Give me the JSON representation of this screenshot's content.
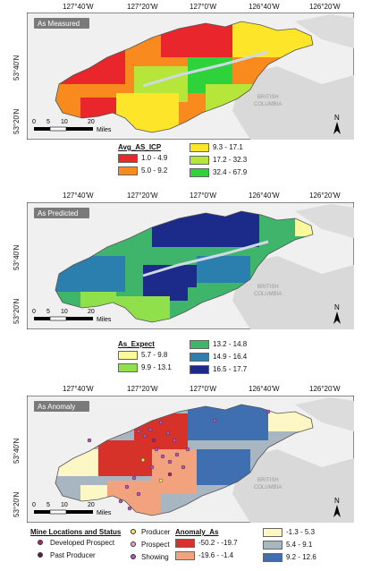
{
  "longitude_labels": [
    "127°40'W",
    "127°20'W",
    "127°0'W",
    "126°40'W",
    "126°20'W"
  ],
  "latitude_labels": [
    "53°40'N",
    "53°20'N"
  ],
  "region_label_line1": "BRITISH",
  "region_label_line2": "COLUMBIA",
  "scale": {
    "ticks": [
      "0",
      "5",
      "10",
      "20"
    ],
    "unit": "Miles"
  },
  "north_label": "N",
  "panels": {
    "measured": {
      "title": "As Measured"
    },
    "predicted": {
      "title": "As Predicted"
    },
    "anomaly": {
      "title": "As Anomaly"
    }
  },
  "legend_measured": {
    "title": "Avg_AS_ICP",
    "classes": [
      {
        "label": "1.0 - 4.9",
        "color": "#e8262b"
      },
      {
        "label": "5.0 - 9.2",
        "color": "#f98a1e"
      },
      {
        "label": "9.3 - 17.1",
        "color": "#fde52a"
      },
      {
        "label": "17.2 - 32.3",
        "color": "#b6e63a"
      },
      {
        "label": "32.4 - 67.9",
        "color": "#2ed23a"
      }
    ]
  },
  "legend_predicted": {
    "title": "As_Expect",
    "classes": [
      {
        "label": "5.7 - 9.8",
        "color": "#fbfa9a"
      },
      {
        "label": "9.9 - 13.1",
        "color": "#8fe04a"
      },
      {
        "label": "13.2 - 14.8",
        "color": "#3fb56b"
      },
      {
        "label": "14.9 - 16.4",
        "color": "#2a7fae"
      },
      {
        "label": "16.5 - 17.7",
        "color": "#1c2a8a"
      }
    ]
  },
  "legend_anomaly": {
    "title": "Anomaly_As",
    "classes": [
      {
        "label": "-50.2 - -19.7",
        "color": "#d7322a"
      },
      {
        "label": "-19.6 - -1.4",
        "color": "#f2a37e"
      },
      {
        "label": "-1.3 - 5.3",
        "color": "#fcf7c4"
      },
      {
        "label": "5.4 - 9.1",
        "color": "#a8b6c2"
      },
      {
        "label": "9.2 - 12.6",
        "color": "#3f6fb0"
      }
    ]
  },
  "mine_legend": {
    "title": "Mine Locations and Status",
    "items": [
      {
        "label": "Developed Prospect",
        "color": "#b0216e"
      },
      {
        "label": "Past Producer",
        "color": "#6a1a4a"
      },
      {
        "label": "Producer",
        "color": "#fde26a"
      },
      {
        "label": "Prospect",
        "color": "#f2a0c8"
      },
      {
        "label": "Showing",
        "color": "#c04fc0"
      }
    ]
  }
}
